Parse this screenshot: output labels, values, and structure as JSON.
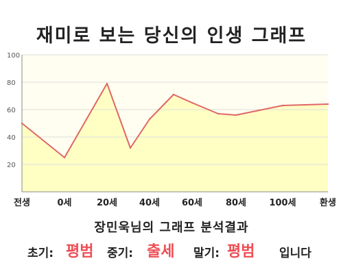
{
  "title": "재미로 보는 당신의 인생 그래프",
  "chart_data": {
    "type": "area",
    "x_categories": [
      "전생",
      "0세",
      "20세",
      "40세",
      "60세",
      "80세",
      "100세",
      "환생"
    ],
    "points": [
      {
        "x": "전생",
        "y": 50
      },
      {
        "x": "0세",
        "y": 25
      },
      {
        "x": "20세",
        "y": 79
      },
      {
        "x": "",
        "y": 32
      },
      {
        "x": "40세",
        "y": 53
      },
      {
        "x": "",
        "y": 71
      },
      {
        "x": "60세",
        "y": 65
      },
      {
        "x": "",
        "y": 57
      },
      {
        "x": "80세",
        "y": 56
      },
      {
        "x": "100세",
        "y": 63
      },
      {
        "x": "환생",
        "y": 64
      }
    ],
    "y_ticks": [
      20,
      40,
      60,
      80,
      100
    ],
    "ylim": [
      0,
      100
    ],
    "grid": true,
    "colors": {
      "line": "#e06666",
      "fill": "#ffffc4",
      "plot_bg": "#fffef0",
      "grid": "#dddddd"
    }
  },
  "summary": "장민욱님의 그래프 분석결과",
  "result": {
    "early_label": "초기:",
    "early_value": "평범",
    "middle_label": "중기:",
    "middle_value": "출세",
    "late_label": "말기:",
    "late_value": "평범",
    "ending": "입니다"
  }
}
